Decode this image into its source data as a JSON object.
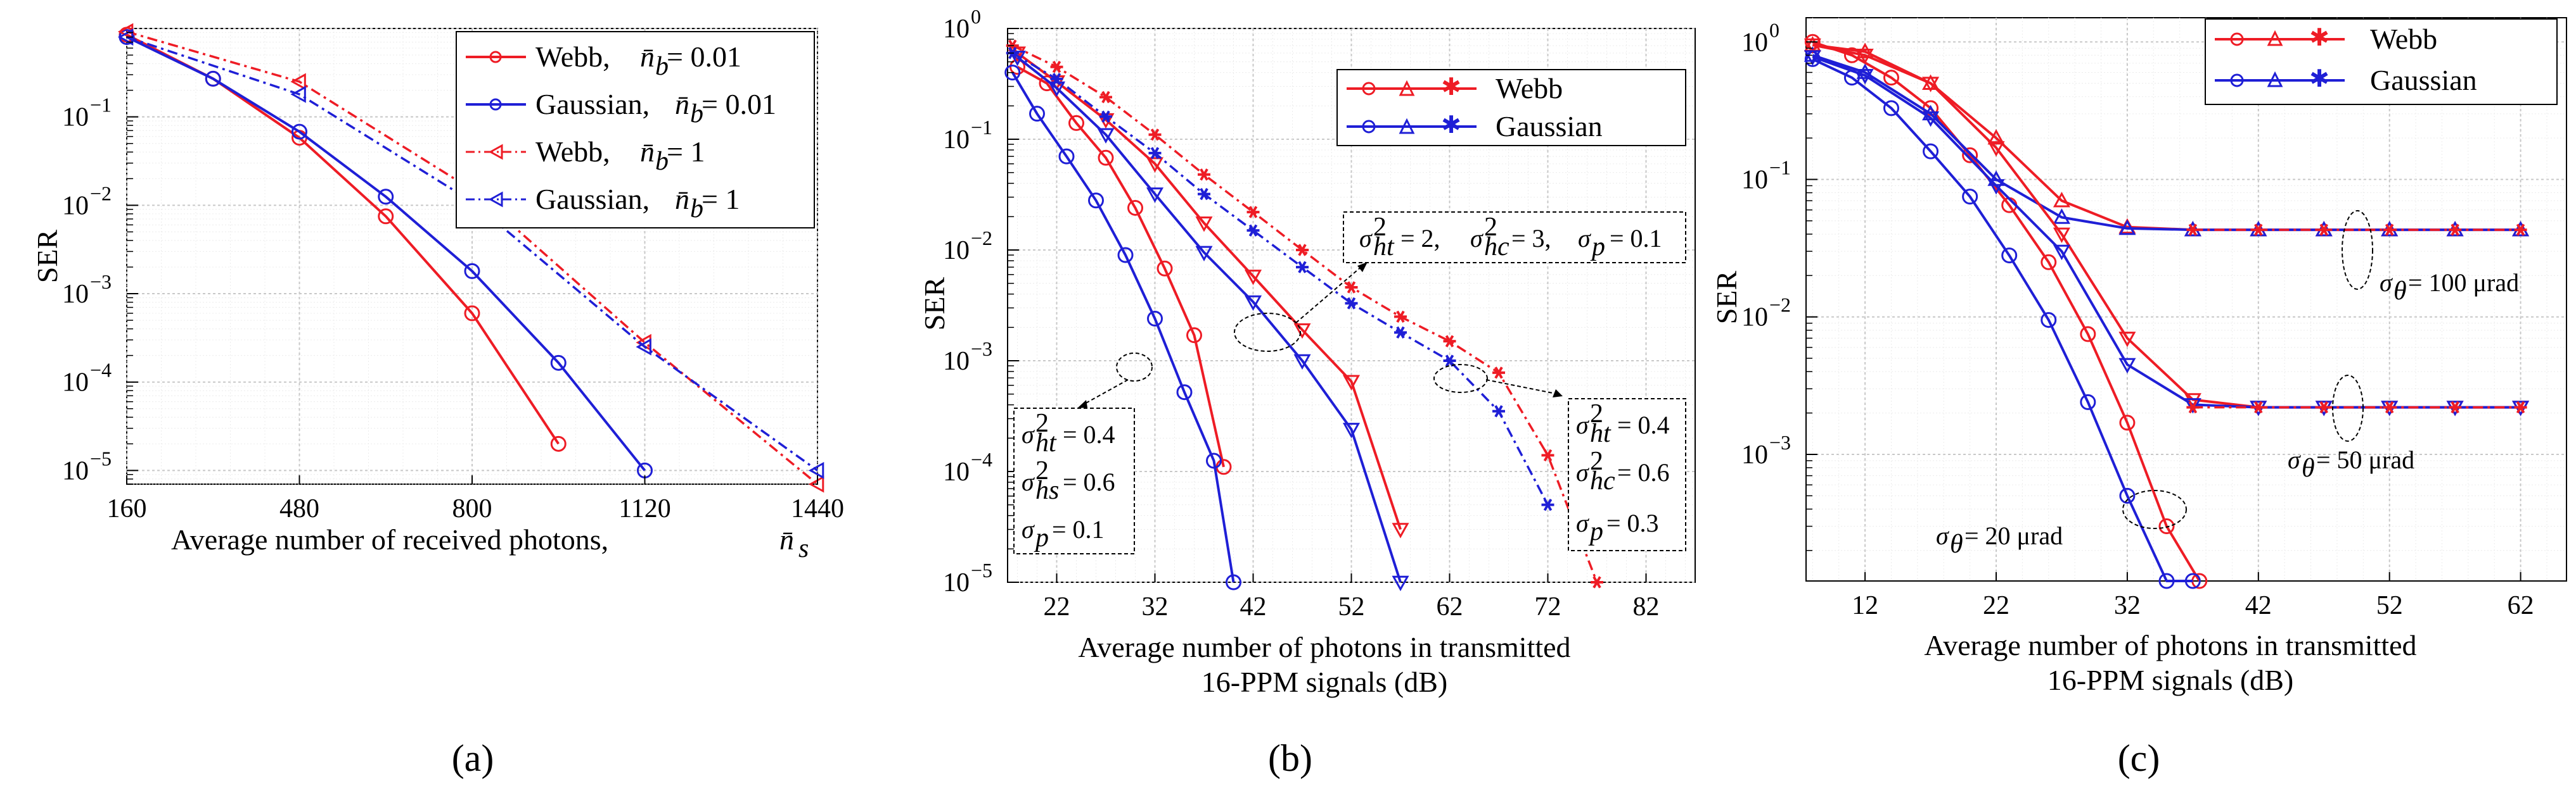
{
  "colors": {
    "webb": "#ee1c25",
    "gaussian": "#1f1fd6"
  },
  "chart_data": [
    {
      "type": "line",
      "panel_label": "(a)",
      "xlabel": "Average number of received photons,",
      "xlabel_symbol": "n̄",
      "xlabel_sub": "s",
      "ylabel": "SER",
      "xlim": [
        160,
        1440
      ],
      "ylim": [
        7e-06,
        1
      ],
      "xticks": [
        160,
        480,
        800,
        1120,
        1440
      ],
      "xtick_labels": [
        "160",
        "480",
        "800",
        "1120",
        "1440"
      ],
      "yticks": [
        1e-05,
        0.0001,
        0.001,
        0.01,
        0.1
      ],
      "ytick_bases": [
        "10",
        "10",
        "10",
        "10",
        "10"
      ],
      "ytick_exps": [
        "−5",
        "−4",
        "−3",
        "−2",
        "−1"
      ],
      "legend": [
        {
          "label": "Webb,",
          "param_symbol": "n̄",
          "param_sub": "b",
          "param_value": " = 0.01"
        },
        {
          "label": "Gaussian,",
          "param_symbol": "n̄",
          "param_sub": "b",
          "param_value": " = 0.01"
        },
        {
          "label": "Webb,",
          "param_symbol": "n̄",
          "param_sub": "b",
          "param_value": " = 1"
        },
        {
          "label": "Gaussian,",
          "param_symbol": "n̄",
          "param_sub": "b",
          "param_value": " = 1"
        }
      ],
      "series": [
        {
          "name": "Webb, nb = 0.01",
          "color": "webb",
          "dash": "solid",
          "marker": "circle",
          "x": [
            160,
            320,
            480,
            640,
            800,
            960
          ],
          "y": [
            0.85,
            0.27,
            0.058,
            0.0075,
            0.0006,
            2e-05
          ]
        },
        {
          "name": "Gaussian, nb = 0.01",
          "color": "gaussian",
          "dash": "solid",
          "marker": "circle",
          "x": [
            160,
            320,
            480,
            640,
            800,
            960,
            1120
          ],
          "y": [
            0.8,
            0.27,
            0.068,
            0.0125,
            0.0018,
            0.000165,
            1e-05
          ]
        },
        {
          "name": "Webb, nb = 1",
          "color": "webb",
          "dash": "dashdot",
          "marker": "tri-left",
          "x": [
            160,
            480,
            800,
            1120,
            1440
          ],
          "y": [
            0.92,
            0.25,
            0.015,
            0.00028,
            7e-06
          ]
        },
        {
          "name": "Gaussian, nb = 1",
          "color": "gaussian",
          "dash": "dashdot",
          "marker": "tri-left",
          "x": [
            160,
            480,
            800,
            1120,
            1440
          ],
          "y": [
            0.8,
            0.18,
            0.011,
            0.00025,
            1e-05
          ]
        }
      ]
    },
    {
      "type": "line",
      "panel_label": "(b)",
      "xlabel": "Average number of  photons in transmitted",
      "xlabel_line2": "16-PPM signals (dB)",
      "ylabel": "SER",
      "xlim": [
        17,
        87
      ],
      "ylim": [
        1e-05,
        1
      ],
      "xticks": [
        22,
        32,
        42,
        52,
        62,
        72,
        82
      ],
      "xtick_labels": [
        "22",
        "32",
        "42",
        "52",
        "62",
        "72",
        "82"
      ],
      "yticks": [
        1e-05,
        0.0001,
        0.001,
        0.01,
        0.1,
        1
      ],
      "ytick_bases": [
        "10",
        "10",
        "10",
        "10",
        "10",
        "10"
      ],
      "ytick_exps": [
        "−5",
        "−4",
        "−3",
        "−2",
        "−1",
        "0"
      ],
      "legend_label": "Webb",
      "legend_label2": "Gaussian",
      "annotations": [
        {
          "text": "σ²ht = 2, σ²hc = 3, σp = 0.1"
        },
        {
          "text": "σ²ht = 0.4, σ²hs = 0.6, σp = 0.1"
        },
        {
          "text": "σ²ht = 0.4, σ²hc = 0.6, σp = 0.3"
        }
      ],
      "box1": [
        {
          "sym": "σ",
          "sup": "2",
          "sub": "ht",
          "val": "= 0.4"
        },
        {
          "sym": "σ",
          "sup": "2",
          "sub": "hs",
          "val": "= 0.6"
        },
        {
          "sym": "σ",
          "sup": "",
          "sub": "p",
          "val": "= 0.1"
        }
      ],
      "box2": [
        {
          "sym": "σ",
          "sup": "2",
          "sub": "ht",
          "val": "= 0.4"
        },
        {
          "sym": "σ",
          "sup": "2",
          "sub": "hc",
          "val": "= 0.6"
        },
        {
          "sym": "σ",
          "sup": "",
          "sub": "p",
          "val": "= 0.3"
        }
      ],
      "box3": [
        {
          "sym": "σ",
          "sup": "2",
          "sub": "ht",
          "val": "= 2,"
        },
        {
          "sym": "σ",
          "sup": "2",
          "sub": "hc",
          "val": "= 3,"
        },
        {
          "sym": "σ",
          "sup": "",
          "sub": "p",
          "val": "= 0.1"
        }
      ],
      "series": [
        {
          "name": "Webb circle",
          "color": "webb",
          "dash": "solid",
          "marker": "circle",
          "x": [
            18,
            21,
            24,
            27,
            30,
            33,
            36,
            39
          ],
          "y": [
            0.45,
            0.32,
            0.14,
            0.068,
            0.024,
            0.0068,
            0.0017,
            0.00011
          ]
        },
        {
          "name": "Gaussian circle",
          "color": "gaussian",
          "dash": "solid",
          "marker": "circle",
          "x": [
            17.5,
            20,
            23,
            26,
            29,
            32,
            35,
            38,
            40
          ],
          "y": [
            0.4,
            0.17,
            0.07,
            0.028,
            0.009,
            0.0024,
            0.00052,
            0.000125,
            1e-05
          ]
        },
        {
          "name": "Webb triangle",
          "color": "webb",
          "dash": "solid",
          "marker": "tri-down",
          "x": [
            18,
            22,
            27,
            32,
            37,
            42,
            47,
            52,
            57
          ],
          "y": [
            0.6,
            0.33,
            0.15,
            0.06,
            0.0175,
            0.0058,
            0.0019,
            0.00065,
            3e-05
          ]
        },
        {
          "name": "Gaussian triangle",
          "color": "gaussian",
          "dash": "solid",
          "marker": "tri-down",
          "x": [
            18,
            22,
            27,
            32,
            37,
            42,
            47,
            52,
            57
          ],
          "y": [
            0.55,
            0.29,
            0.11,
            0.032,
            0.0095,
            0.0034,
            0.001,
            0.00024,
            1e-05
          ]
        },
        {
          "name": "Webb star",
          "color": "webb",
          "dash": "dashdot",
          "marker": "star",
          "x": [
            17.5,
            22,
            27,
            32,
            37,
            42,
            47,
            52,
            57,
            62,
            67,
            72,
            77
          ],
          "y": [
            0.7,
            0.45,
            0.24,
            0.11,
            0.048,
            0.022,
            0.01,
            0.0046,
            0.0025,
            0.0015,
            0.00078,
            0.00014,
            1e-05
          ]
        },
        {
          "name": "Gaussian star",
          "color": "gaussian",
          "dash": "dashdot",
          "marker": "star",
          "x": [
            17.5,
            22,
            27,
            32,
            37,
            42,
            47,
            52,
            57,
            62,
            67,
            72
          ],
          "y": [
            0.6,
            0.35,
            0.16,
            0.075,
            0.032,
            0.015,
            0.007,
            0.0033,
            0.0018,
            0.001,
            0.00035,
            5e-05
          ]
        }
      ]
    },
    {
      "type": "line",
      "panel_label": "(c)",
      "xlabel": "Average number of  photons in transmitted",
      "xlabel_line2": "16-PPM signals (dB)",
      "ylabel": "SER",
      "xlim": [
        7.5,
        65.5
      ],
      "ylim": [
        0.00012,
        1.5
      ],
      "xticks": [
        12,
        22,
        32,
        42,
        52,
        62
      ],
      "xtick_labels": [
        "12",
        "22",
        "32",
        "42",
        "52",
        "62"
      ],
      "yticks": [
        0.001,
        0.01,
        0.1,
        1
      ],
      "ytick_bases": [
        "10",
        "10",
        "10",
        "10"
      ],
      "ytick_exps": [
        "−3",
        "−2",
        "−1",
        "0"
      ],
      "legend_label": "Webb",
      "legend_label2": "Gaussian",
      "annotations": [
        {
          "sym": "σ",
          "sub": "θ",
          "text": " = 100 μrad"
        },
        {
          "sym": "σ",
          "sub": "θ",
          "text": " = 50 μrad"
        },
        {
          "sym": "σ",
          "sub": "θ",
          "text": " = 20 μrad"
        }
      ],
      "series": [
        {
          "name": "Webb circle",
          "color": "webb",
          "dash": "solid",
          "marker": "circle",
          "x": [
            8,
            11,
            14,
            17,
            20,
            23,
            26,
            29,
            32,
            35,
            37.5
          ],
          "y": [
            1.0,
            0.8,
            0.55,
            0.33,
            0.15,
            0.065,
            0.025,
            0.0075,
            0.0017,
            0.0003,
            0.00012
          ]
        },
        {
          "name": "Gaussian circle",
          "color": "gaussian",
          "dash": "solid",
          "marker": "circle",
          "x": [
            8,
            11,
            14,
            17,
            20,
            23,
            26,
            29,
            32,
            35,
            37
          ],
          "y": [
            0.75,
            0.55,
            0.33,
            0.16,
            0.075,
            0.028,
            0.0095,
            0.0024,
            0.0005,
            0.00012,
            0.00012
          ]
        },
        {
          "name": "Webb triangle 1",
          "color": "webb",
          "dash": "solid",
          "marker": "tri-up",
          "x": [
            8,
            12,
            17,
            22,
            27,
            32,
            37,
            42,
            47,
            52,
            57,
            62
          ],
          "y": [
            0.95,
            0.85,
            0.5,
            0.2,
            0.07,
            0.045,
            0.043,
            0.043,
            0.043,
            0.043,
            0.043,
            0.043
          ]
        },
        {
          "name": "Gaussian triangle 1",
          "color": "gaussian",
          "dash": "solid",
          "marker": "tri-up",
          "x": [
            8,
            12,
            17,
            22,
            27,
            32,
            37,
            42,
            47,
            52,
            57,
            62
          ],
          "y": [
            0.8,
            0.6,
            0.3,
            0.1,
            0.053,
            0.044,
            0.043,
            0.043,
            0.043,
            0.043,
            0.043,
            0.043
          ]
        },
        {
          "name": "Webb triangle 2",
          "color": "webb",
          "dash": "solid",
          "marker": "tri-down",
          "x": [
            8,
            12,
            17,
            22,
            27,
            32,
            37,
            42,
            47,
            52,
            57,
            62
          ],
          "y": [
            0.95,
            0.8,
            0.5,
            0.17,
            0.04,
            0.007,
            0.0025,
            0.0022,
            0.0022,
            0.0022,
            0.0022,
            0.0022
          ]
        },
        {
          "name": "Gaussian triangle 2",
          "color": "gaussian",
          "dash": "solid",
          "marker": "tri-down",
          "x": [
            8,
            12,
            17,
            22,
            27,
            32,
            37,
            42,
            47,
            52,
            57,
            62
          ],
          "y": [
            0.78,
            0.57,
            0.28,
            0.09,
            0.03,
            0.0045,
            0.0023,
            0.0022,
            0.0022,
            0.0022,
            0.0022,
            0.0022
          ]
        },
        {
          "name": "Webb star",
          "color": "webb",
          "dash": "dashdot",
          "marker": "star",
          "x": [
            37,
            42,
            47,
            52,
            57,
            62
          ],
          "y": [
            0.043,
            0.043,
            0.043,
            0.043,
            0.043,
            0.043
          ]
        },
        {
          "name": "Webb star 2",
          "color": "webb",
          "dash": "dashdot",
          "marker": "star",
          "x": [
            37,
            42,
            47,
            52,
            57,
            62
          ],
          "y": [
            0.0022,
            0.0022,
            0.0022,
            0.0022,
            0.0022,
            0.0022
          ]
        }
      ]
    }
  ]
}
